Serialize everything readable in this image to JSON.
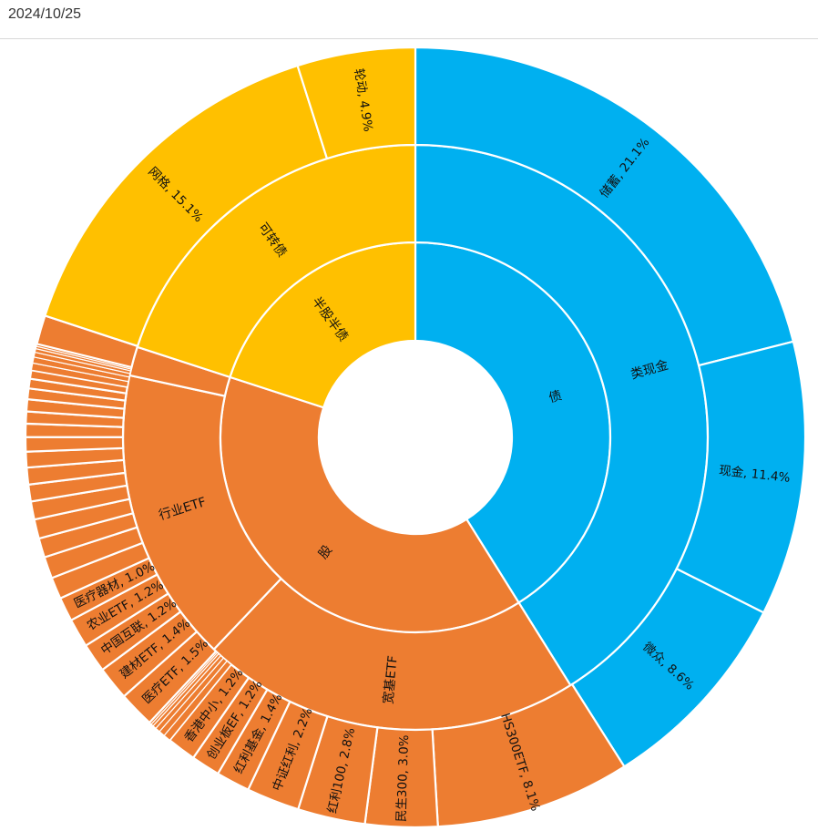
{
  "header": {
    "date": "2024/10/25"
  },
  "colors": {
    "bond": "#00b0f0",
    "convertible": "#ffc000",
    "equity": "#ed7d31",
    "divider": "#ffffff"
  },
  "chart_data": {
    "type": "sunburst",
    "start_angle_deg": 0,
    "direction": "clockwise",
    "levels": [
      [
        {
          "name": "债",
          "value": 41.1,
          "color": "bond"
        },
        {
          "name": "股",
          "value": 38.9,
          "color": "equity"
        },
        {
          "name": "半股半债",
          "value": 20.0,
          "color": "convertible"
        }
      ],
      [
        {
          "name": "类现金",
          "value": 41.1,
          "color": "bond"
        },
        {
          "name": "宽基ETF",
          "value": 21.0,
          "color": "equity"
        },
        {
          "name": "行业ETF",
          "value": 16.3,
          "color": "equity"
        },
        {
          "name": "",
          "value": 1.6,
          "color": "equity"
        },
        {
          "name": "可转债",
          "value": 20.0,
          "color": "convertible"
        }
      ],
      [
        {
          "name": "储蓄, 21.1%",
          "value": 21.1,
          "color": "bond"
        },
        {
          "name": "现金, 11.4%",
          "value": 11.4,
          "color": "bond"
        },
        {
          "name": "微众, 8.6%",
          "value": 8.6,
          "color": "bond"
        },
        {
          "name": "HS300ETF, 8.1%",
          "value": 8.1,
          "color": "equity"
        },
        {
          "name": "民生300, 3.0%",
          "value": 3.0,
          "color": "equity"
        },
        {
          "name": "红利100, 2.8%",
          "value": 2.8,
          "color": "equity"
        },
        {
          "name": "中证红利, 2.2%",
          "value": 2.2,
          "color": "equity"
        },
        {
          "name": "红利基金, 1.4%",
          "value": 1.4,
          "color": "equity"
        },
        {
          "name": "创业板EF, 1.2%",
          "value": 1.2,
          "color": "equity"
        },
        {
          "name": "香港中小, 1.2%",
          "value": 1.2,
          "color": "equity"
        },
        {
          "name": "",
          "value": 0.3,
          "color": "equity"
        },
        {
          "name": "",
          "value": 0.25,
          "color": "equity"
        },
        {
          "name": "",
          "value": 0.2,
          "color": "equity"
        },
        {
          "name": "",
          "value": 0.15,
          "color": "equity"
        },
        {
          "name": "",
          "value": 0.1,
          "color": "equity"
        },
        {
          "name": "",
          "value": 0.1,
          "color": "equity"
        },
        {
          "name": "医疗ETF, 1.5%",
          "value": 1.5,
          "color": "equity"
        },
        {
          "name": "建材ETF, 1.4%",
          "value": 1.4,
          "color": "equity"
        },
        {
          "name": "中国互联, 1.2%",
          "value": 1.2,
          "color": "equity"
        },
        {
          "name": "农业ETF, 1.2%",
          "value": 1.2,
          "color": "equity"
        },
        {
          "name": "医疗器材, 1.0%",
          "value": 1.0,
          "color": "equity"
        },
        {
          "name": "",
          "value": 0.9,
          "color": "equity"
        },
        {
          "name": "",
          "value": 0.9,
          "color": "equity"
        },
        {
          "name": "",
          "value": 0.8,
          "color": "equity"
        },
        {
          "name": "",
          "value": 0.8,
          "color": "equity"
        },
        {
          "name": "",
          "value": 0.75,
          "color": "equity"
        },
        {
          "name": "",
          "value": 0.7,
          "color": "equity"
        },
        {
          "name": "",
          "value": 0.7,
          "color": "equity"
        },
        {
          "name": "",
          "value": 0.65,
          "color": "equity"
        },
        {
          "name": "",
          "value": 0.6,
          "color": "equity"
        },
        {
          "name": "",
          "value": 0.55,
          "color": "equity"
        },
        {
          "name": "",
          "value": 0.5,
          "color": "equity"
        },
        {
          "name": "",
          "value": 0.5,
          "color": "equity"
        },
        {
          "name": "",
          "value": 0.45,
          "color": "equity"
        },
        {
          "name": "",
          "value": 0.4,
          "color": "equity"
        },
        {
          "name": "",
          "value": 0.35,
          "color": "equity"
        },
        {
          "name": "",
          "value": 0.3,
          "color": "equity"
        },
        {
          "name": "",
          "value": 0.25,
          "color": "equity"
        },
        {
          "name": "",
          "value": 0.2,
          "color": "equity"
        },
        {
          "name": "",
          "value": 0.15,
          "color": "equity"
        },
        {
          "name": "",
          "value": 0.1,
          "color": "equity"
        },
        {
          "name": "",
          "value": 0.1,
          "color": "equity"
        },
        {
          "name": "",
          "value": 1.2,
          "color": "equity"
        },
        {
          "name": "网格, 15.1%",
          "value": 15.1,
          "color": "convertible"
        },
        {
          "name": "轮动, 4.9%",
          "value": 4.9,
          "color": "convertible"
        }
      ]
    ]
  }
}
